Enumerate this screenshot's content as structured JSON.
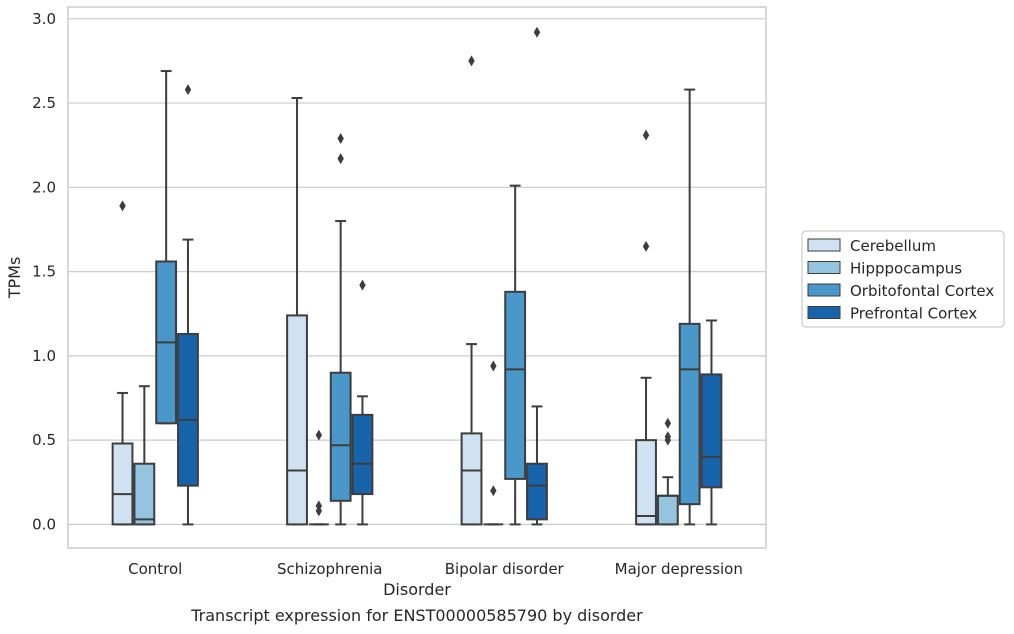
{
  "caption": "Transcript expression for ENST00000585790 by disorder",
  "chart_data": {
    "type": "box",
    "xlabel": "Disorder",
    "ylabel": "TPMs",
    "ylim": [
      -0.14,
      3.07
    ],
    "yticks": [
      "0.0",
      "0.5",
      "1.0",
      "1.5",
      "2.0",
      "2.5",
      "3.0"
    ],
    "ytick_values": [
      0,
      0.5,
      1.0,
      1.5,
      2.0,
      2.5,
      3.0
    ],
    "grid": "horizontal",
    "legend_position": "right",
    "categories": [
      "Control",
      "Schizophrenia",
      "Bipolar disorder",
      "Major depression"
    ],
    "series": [
      {
        "name": "Cerebellum",
        "color": "#d0e1f2",
        "boxes": [
          {
            "whislo": 0,
            "q1": 0,
            "med": 0.18,
            "q3": 0.48,
            "whishi": 0.78,
            "fliers": [
              1.89
            ]
          },
          {
            "whislo": 0,
            "q1": 0,
            "med": 0.32,
            "q3": 1.24,
            "whishi": 2.53,
            "fliers": []
          },
          {
            "whislo": 0,
            "q1": 0,
            "med": 0.32,
            "q3": 0.54,
            "whishi": 1.07,
            "fliers": [
              2.75
            ]
          },
          {
            "whislo": 0,
            "q1": 0,
            "med": 0.05,
            "q3": 0.5,
            "whishi": 0.87,
            "fliers": [
              1.65,
              2.31
            ]
          }
        ]
      },
      {
        "name": "Hipppocampus",
        "color": "#94c4df",
        "boxes": [
          {
            "whislo": 0,
            "q1": 0,
            "med": 0.03,
            "q3": 0.36,
            "whishi": 0.82,
            "fliers": []
          },
          {
            "whislo": 0,
            "q1": 0,
            "med": 0,
            "q3": 0,
            "whishi": 0,
            "fliers": [
              0.53,
              0.11,
              0.08
            ]
          },
          {
            "whislo": 0,
            "q1": 0,
            "med": 0,
            "q3": 0,
            "whishi": 0,
            "fliers": [
              0.94,
              0.2
            ]
          },
          {
            "whislo": 0,
            "q1": 0,
            "med": 0.17,
            "q3": 0.17,
            "whishi": 0.28,
            "fliers": [
              0.6,
              0.52,
              0.5
            ]
          }
        ]
      },
      {
        "name": "Orbitofontal Cortex",
        "color": "#4a98c9",
        "boxes": [
          {
            "whislo": 0.6,
            "q1": 0.6,
            "med": 1.08,
            "q3": 1.56,
            "whishi": 2.69,
            "fliers": []
          },
          {
            "whislo": 0,
            "q1": 0.14,
            "med": 0.47,
            "q3": 0.9,
            "whishi": 1.8,
            "fliers": [
              2.17,
              2.29
            ]
          },
          {
            "whislo": 0,
            "q1": 0.27,
            "med": 0.92,
            "q3": 1.38,
            "whishi": 2.01,
            "fliers": []
          },
          {
            "whislo": 0,
            "q1": 0.12,
            "med": 0.92,
            "q3": 1.19,
            "whishi": 2.58,
            "fliers": []
          }
        ]
      },
      {
        "name": "Prefrontal Cortex",
        "color": "#1764ab",
        "boxes": [
          {
            "whislo": 0,
            "q1": 0.23,
            "med": 0.62,
            "q3": 1.13,
            "whishi": 1.69,
            "fliers": [
              2.58
            ]
          },
          {
            "whislo": 0,
            "q1": 0.18,
            "med": 0.36,
            "q3": 0.65,
            "whishi": 0.76,
            "fliers": [
              1.42
            ]
          },
          {
            "whislo": 0,
            "q1": 0.03,
            "med": 0.23,
            "q3": 0.36,
            "whishi": 0.7,
            "fliers": [
              2.92
            ]
          },
          {
            "whislo": 0,
            "q1": 0.22,
            "med": 0.4,
            "q3": 0.89,
            "whishi": 1.21,
            "fliers": []
          }
        ]
      }
    ]
  }
}
